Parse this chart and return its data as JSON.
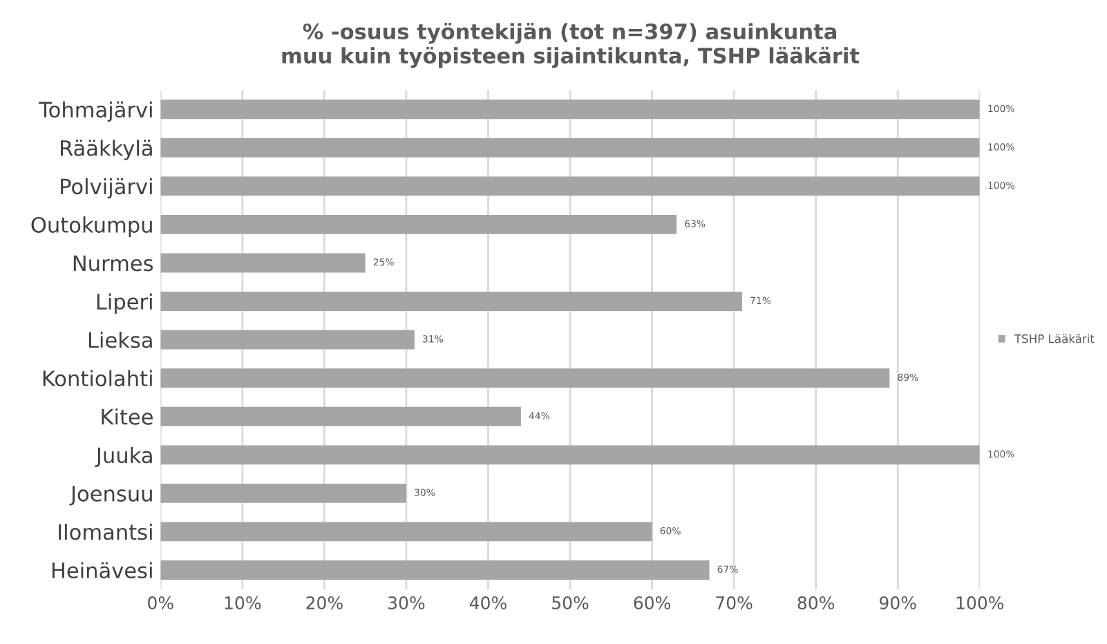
{
  "chart_data": {
    "type": "bar",
    "orientation": "horizontal",
    "title": "% -osuus työntekijän (tot n=397) asuinkunta\nmuu kuin työpisteen sijaintikunta, TSHP lääkärit",
    "categories": [
      "Tohmajärvi",
      "Rääkkylä",
      "Polvijärvi",
      "Outokumpu",
      "Nurmes",
      "Liperi",
      "Lieksa",
      "Kontiolahti",
      "Kitee",
      "Juuka",
      "Joensuu",
      "Ilomantsi",
      "Heinävesi"
    ],
    "series": [
      {
        "name": "TSHP Lääkärit",
        "color": "#a5a5a5",
        "values": [
          100,
          100,
          100,
          63,
          25,
          71,
          31,
          89,
          44,
          100,
          30,
          60,
          67
        ],
        "value_labels": [
          "100%",
          "100%",
          "100%",
          "63%",
          "25%",
          "71%",
          "31%",
          "89%",
          "44%",
          "100%",
          "30%",
          "60%",
          "67%"
        ]
      }
    ],
    "xlim": [
      0,
      100
    ],
    "xticks": [
      {
        "value": 0,
        "label": "0%"
      },
      {
        "value": 10,
        "label": "10%"
      },
      {
        "value": 20,
        "label": "20%"
      },
      {
        "value": 30,
        "label": "30%"
      },
      {
        "value": 40,
        "label": "40%"
      },
      {
        "value": 50,
        "label": "50%"
      },
      {
        "value": 60,
        "label": "60%"
      },
      {
        "value": 70,
        "label": "70%"
      },
      {
        "value": 80,
        "label": "80%"
      },
      {
        "value": 90,
        "label": "90%"
      },
      {
        "value": 100,
        "label": "100%"
      }
    ],
    "grid": "x",
    "legend": "right"
  }
}
